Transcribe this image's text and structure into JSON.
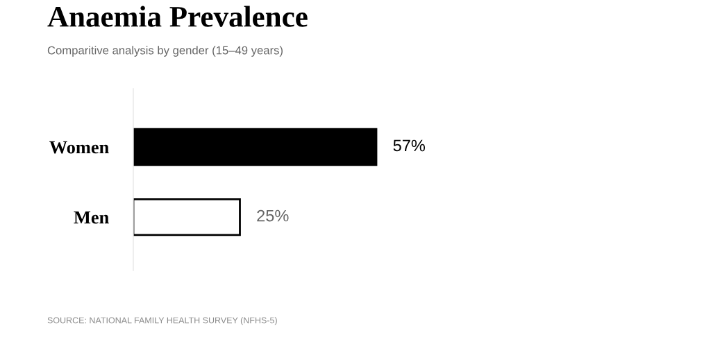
{
  "chart_data": {
    "type": "bar",
    "orientation": "horizontal",
    "title": "Anaemia Prevalence",
    "subtitle": "Comparitive analysis by gender (15–49 years)",
    "categories": [
      "Women",
      "Men"
    ],
    "values": [
      57,
      25
    ],
    "colors": [
      "#000000",
      "#ffffff"
    ],
    "value_labels": [
      "57%",
      "25%"
    ],
    "annotations": [
      "SOURCE: NATIONAL FAMILY HEALTH SURVEY (NFHS-5)"
    ]
  }
}
